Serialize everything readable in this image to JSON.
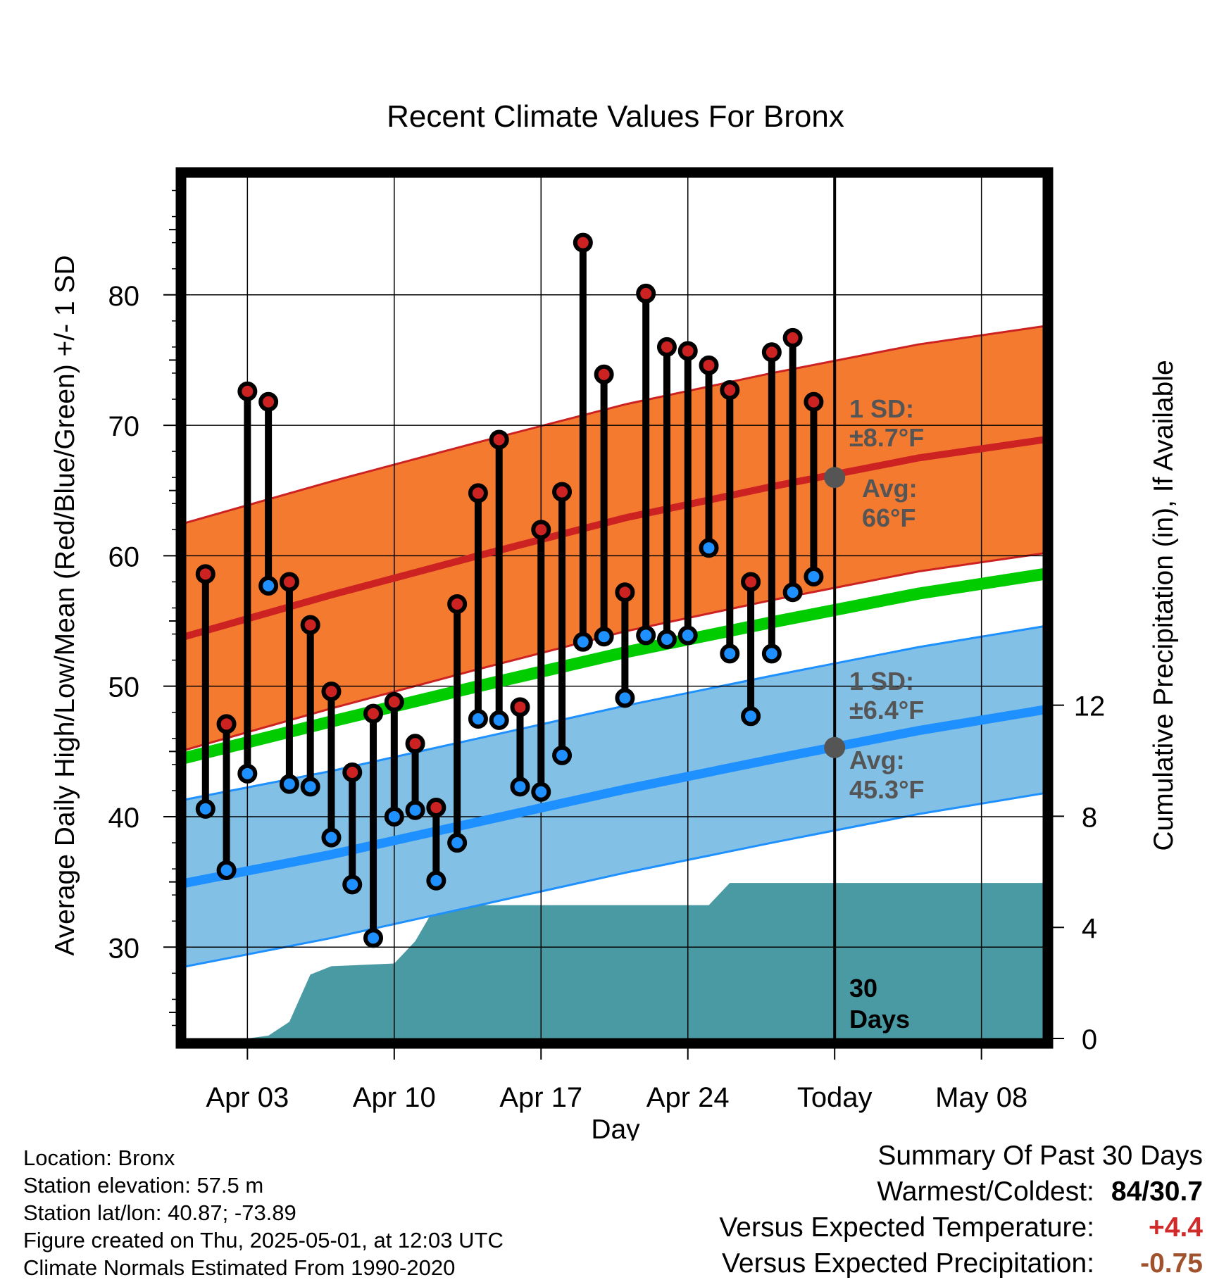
{
  "chart_data": {
    "type": "climate-range",
    "title": "Recent Climate Values For Bronx",
    "xlabel": "Day",
    "ylabel": "Average Daily High/Low/Mean (Red/Blue/Green) +/- 1 SD",
    "y2label": "Cumulative Precipitation (in), If Available",
    "y_range": [
      23,
      89
    ],
    "y_ticks": [
      30,
      40,
      50,
      60,
      70,
      80
    ],
    "y2_range": [
      0,
      31
    ],
    "y2_ticks": [
      0,
      4,
      8,
      12
    ],
    "x_range": [
      "2025-03-31",
      "2025-05-11"
    ],
    "x_ticks": [
      {
        "date": "2025-04-03",
        "label": "Apr 03"
      },
      {
        "date": "2025-04-10",
        "label": "Apr 10"
      },
      {
        "date": "2025-04-17",
        "label": "Apr 17"
      },
      {
        "date": "2025-04-24",
        "label": "Apr 24"
      },
      {
        "date": "2025-05-01",
        "label": "Today"
      },
      {
        "date": "2025-05-08",
        "label": "May 08"
      }
    ],
    "today": "2025-05-01",
    "daily": [
      {
        "date": "2025-04-01",
        "high": 58.6,
        "low": 40.6
      },
      {
        "date": "2025-04-02",
        "high": 47.1,
        "low": 35.9
      },
      {
        "date": "2025-04-03",
        "high": 72.6,
        "low": 43.3
      },
      {
        "date": "2025-04-04",
        "high": 71.8,
        "low": 57.7
      },
      {
        "date": "2025-04-05",
        "high": 58.0,
        "low": 42.5
      },
      {
        "date": "2025-04-06",
        "high": 54.7,
        "low": 42.3
      },
      {
        "date": "2025-04-07",
        "high": 49.6,
        "low": 38.4
      },
      {
        "date": "2025-04-08",
        "high": 43.4,
        "low": 34.8
      },
      {
        "date": "2025-04-09",
        "high": 47.9,
        "low": 30.7
      },
      {
        "date": "2025-04-10",
        "high": 48.8,
        "low": 40.0
      },
      {
        "date": "2025-04-11",
        "high": 45.6,
        "low": 40.5
      },
      {
        "date": "2025-04-12",
        "high": 40.7,
        "low": 35.1
      },
      {
        "date": "2025-04-13",
        "high": 56.3,
        "low": 38.0
      },
      {
        "date": "2025-04-14",
        "high": 64.8,
        "low": 47.5
      },
      {
        "date": "2025-04-15",
        "high": 68.9,
        "low": 47.4
      },
      {
        "date": "2025-04-16",
        "high": 48.4,
        "low": 42.3
      },
      {
        "date": "2025-04-17",
        "high": 62.0,
        "low": 41.9
      },
      {
        "date": "2025-04-18",
        "high": 64.9,
        "low": 44.7
      },
      {
        "date": "2025-04-19",
        "high": 84.0,
        "low": 53.4
      },
      {
        "date": "2025-04-20",
        "high": 73.9,
        "low": 53.8
      },
      {
        "date": "2025-04-21",
        "high": 57.2,
        "low": 49.1
      },
      {
        "date": "2025-04-22",
        "high": 80.1,
        "low": 53.9
      },
      {
        "date": "2025-04-23",
        "high": 76.0,
        "low": 53.6
      },
      {
        "date": "2025-04-24",
        "high": 75.7,
        "low": 53.9
      },
      {
        "date": "2025-04-25",
        "high": 74.6,
        "low": 60.6
      },
      {
        "date": "2025-04-26",
        "high": 72.7,
        "low": 52.5
      },
      {
        "date": "2025-04-27",
        "high": 58.0,
        "low": 47.7
      },
      {
        "date": "2025-04-28",
        "high": 75.6,
        "low": 52.5
      },
      {
        "date": "2025-04-29",
        "high": 76.7,
        "low": 57.2
      },
      {
        "date": "2025-04-30",
        "high": 71.8,
        "low": 58.4
      }
    ],
    "normals": {
      "dates": [
        "2025-03-31",
        "2025-04-07",
        "2025-04-14",
        "2025-04-21",
        "2025-04-28",
        "2025-05-05",
        "2025-05-11"
      ],
      "high_avg": [
        53.8,
        57.0,
        60.0,
        62.9,
        65.3,
        67.5,
        68.9
      ],
      "high_sd": 8.7,
      "low_avg": [
        34.9,
        37.1,
        39.6,
        42.1,
        44.4,
        46.6,
        48.2
      ],
      "low_sd": 6.4,
      "mean_avg": [
        44.5,
        47.3,
        50.0,
        52.6,
        54.9,
        57.1,
        58.6
      ]
    },
    "precip": {
      "dates": [
        "2025-03-31",
        "2025-04-03",
        "2025-04-04",
        "2025-04-05",
        "2025-04-06",
        "2025-04-07",
        "2025-04-10",
        "2025-04-11",
        "2025-04-12",
        "2025-04-25",
        "2025-04-26",
        "2025-05-11"
      ],
      "cumulative": [
        0.0,
        0.0,
        0.1,
        0.6,
        2.3,
        2.6,
        2.7,
        3.5,
        4.8,
        4.8,
        5.6,
        5.6
      ]
    },
    "annotations": {
      "high_sd_title": "1 SD:",
      "high_sd_value": "±8.7°F",
      "high_avg_title": "Avg:",
      "high_avg_value": "66°F",
      "low_sd_title": "1 SD:",
      "low_sd_value": "±6.4°F",
      "low_avg_title": "Avg:",
      "low_avg_value": "45.3°F",
      "today_avg_high": 66.0,
      "today_avg_low": 45.3,
      "days_num": "30",
      "days_label": "Days"
    },
    "colors": {
      "high_band": "#f47a30",
      "high_line": "#cc2222",
      "low_band": "#82c0e6",
      "low_line": "#1e90ff",
      "mean_line": "#00cc00",
      "precip": "#4a9aa3",
      "high_dot": "#cc2222",
      "low_dot": "#1e90ff",
      "annotation": "#555555"
    }
  },
  "footer": {
    "location": "Location: Bronx",
    "elevation": "Station elevation: 57.5 m",
    "latlon": "Station lat/lon: 40.87; -73.89",
    "created": "Figure created on Thu, 2025-05-01, at 12:03 UTC",
    "normals": "Climate Normals Estimated From 1990-2020"
  },
  "summary": {
    "title": "Summary Of Past 30 Days",
    "warmest_label": "Warmest/Coldest:",
    "warmest_value": "84/30.7",
    "temp_label": "Versus Expected Temperature:",
    "temp_value": "+4.4",
    "temp_color": "#d02a2a",
    "precip_label": "Versus Expected Precipitation:",
    "precip_value": "-0.75",
    "precip_color": "#a0522d"
  }
}
